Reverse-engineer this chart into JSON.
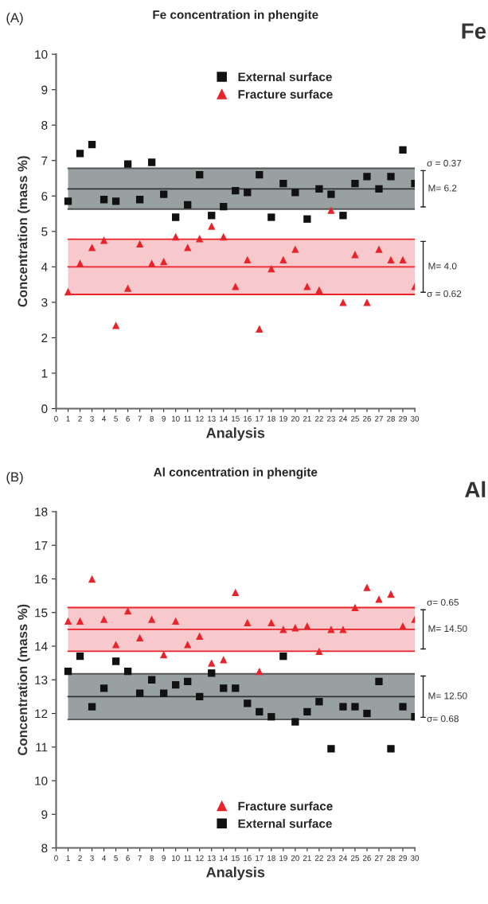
{
  "chart_data": [
    {
      "type": "scatter",
      "title": "Fe concentration in phengite",
      "xlabel": "Analysis",
      "ylabel": "Concentration (mass %)",
      "x": [
        1,
        2,
        3,
        4,
        5,
        6,
        7,
        8,
        9,
        10,
        11,
        12,
        13,
        14,
        15,
        16,
        17,
        18,
        19,
        20,
        21,
        22,
        23,
        24,
        25,
        26,
        27,
        28,
        29,
        30
      ],
      "series": [
        {
          "name": "External surface",
          "color": "#111111",
          "marker": "square",
          "values": [
            5.85,
            7.2,
            7.45,
            5.9,
            5.85,
            6.9,
            5.9,
            6.95,
            6.05,
            5.4,
            5.75,
            6.6,
            5.45,
            5.7,
            6.15,
            6.1,
            6.6,
            5.4,
            6.35,
            6.1,
            5.35,
            6.2,
            6.05,
            5.45,
            6.35,
            6.55,
            6.2,
            6.55,
            7.3,
            6.35
          ]
        },
        {
          "name": "Fracture surface",
          "color": "#e8232a",
          "marker": "triangle",
          "values": [
            3.3,
            4.1,
            4.55,
            4.75,
            2.35,
            3.4,
            4.65,
            4.1,
            4.15,
            4.85,
            4.55,
            4.8,
            5.15,
            4.85,
            3.45,
            4.2,
            2.25,
            3.95,
            4.2,
            4.5,
            3.45,
            3.35,
            5.6,
            3.0,
            4.35,
            3.0,
            4.5,
            4.2,
            4.2,
            3.45
          ]
        }
      ],
      "bands": [
        {
          "axis": "y",
          "from": 5.63,
          "to": 6.78,
          "color": "#8e9698",
          "label": "σ = 0.37"
        },
        {
          "axis": "y",
          "from": 3.22,
          "to": 4.78,
          "color": "#f7c3c6",
          "label": "σ = 0.62"
        }
      ],
      "ref_lines": [
        {
          "axis": "y",
          "value": 6.2,
          "color": "#333333",
          "label": "M= 6.2"
        },
        {
          "axis": "y",
          "value": 6.78,
          "color": "#555555"
        },
        {
          "axis": "y",
          "value": 5.63,
          "color": "#555555"
        },
        {
          "axis": "y",
          "value": 4.0,
          "color": "#e8232a",
          "label": "M= 4.0"
        },
        {
          "axis": "y",
          "value": 4.78,
          "color": "#e8232a"
        },
        {
          "axis": "y",
          "value": 3.22,
          "color": "#e8232a"
        }
      ],
      "annotations": [
        "(A)",
        "Fe"
      ],
      "xlim": [
        0,
        30
      ],
      "xticks": [
        0,
        1,
        2,
        3,
        4,
        5,
        6,
        7,
        8,
        9,
        10,
        11,
        12,
        13,
        14,
        15,
        16,
        17,
        18,
        19,
        20,
        21,
        22,
        23,
        24,
        25,
        26,
        27,
        28,
        29,
        30
      ],
      "ylim": [
        0,
        10
      ],
      "yticks": [
        0,
        1,
        2,
        3,
        4,
        5,
        6,
        7,
        8,
        9,
        10
      ],
      "grid": false,
      "legend": "top"
    },
    {
      "type": "scatter",
      "title": "Al concentration in phengite",
      "xlabel": "Analysis",
      "ylabel": "Concentration (mass %)",
      "x": [
        1,
        2,
        3,
        4,
        5,
        6,
        7,
        8,
        9,
        10,
        11,
        12,
        13,
        14,
        15,
        16,
        17,
        18,
        19,
        20,
        21,
        22,
        23,
        24,
        25,
        26,
        27,
        28,
        29,
        30
      ],
      "series": [
        {
          "name": "Fracture surface",
          "color": "#e8232a",
          "marker": "triangle",
          "values": [
            14.75,
            14.75,
            16.0,
            14.8,
            14.05,
            15.05,
            14.25,
            14.8,
            13.75,
            14.75,
            14.05,
            14.3,
            13.5,
            13.6,
            15.6,
            14.7,
            13.25,
            14.7,
            14.5,
            14.55,
            14.6,
            13.85,
            14.5,
            14.5,
            15.15,
            15.75,
            15.4,
            15.55,
            14.6,
            14.8
          ]
        },
        {
          "name": "External surface",
          "color": "#111111",
          "marker": "square",
          "values": [
            13.25,
            13.7,
            12.2,
            12.75,
            13.55,
            13.25,
            12.6,
            13.0,
            12.6,
            12.85,
            12.95,
            12.5,
            13.2,
            12.75,
            12.75,
            12.3,
            12.05,
            11.9,
            13.7,
            11.75,
            12.05,
            12.35,
            10.95,
            12.2,
            12.2,
            12.0,
            12.95,
            10.95,
            12.2,
            11.9
          ]
        }
      ],
      "bands": [
        {
          "axis": "y",
          "from": 13.85,
          "to": 15.15,
          "color": "#f7c3c6",
          "label": "σ= 0.65"
        },
        {
          "axis": "y",
          "from": 11.82,
          "to": 13.18,
          "color": "#8e9698",
          "label": "σ= 0.68"
        }
      ],
      "ref_lines": [
        {
          "axis": "y",
          "value": 14.5,
          "color": "#e8232a",
          "label": "M= 14.50"
        },
        {
          "axis": "y",
          "value": 15.15,
          "color": "#e8232a"
        },
        {
          "axis": "y",
          "value": 13.85,
          "color": "#e8232a"
        },
        {
          "axis": "y",
          "value": 12.5,
          "color": "#333333",
          "label": "M= 12.50"
        },
        {
          "axis": "y",
          "value": 13.18,
          "color": "#555555"
        },
        {
          "axis": "y",
          "value": 11.82,
          "color": "#555555"
        }
      ],
      "annotations": [
        "(B)",
        "Al"
      ],
      "xlim": [
        0,
        30
      ],
      "xticks": [
        0,
        1,
        2,
        3,
        4,
        5,
        6,
        7,
        8,
        9,
        10,
        11,
        12,
        13,
        14,
        15,
        16,
        17,
        18,
        19,
        20,
        21,
        22,
        23,
        24,
        25,
        26,
        27,
        28,
        29,
        30
      ],
      "ylim": [
        8,
        18
      ],
      "yticks": [
        8,
        9,
        10,
        11,
        12,
        13,
        14,
        15,
        16,
        17,
        18
      ],
      "grid": false,
      "legend": "bottom"
    }
  ]
}
